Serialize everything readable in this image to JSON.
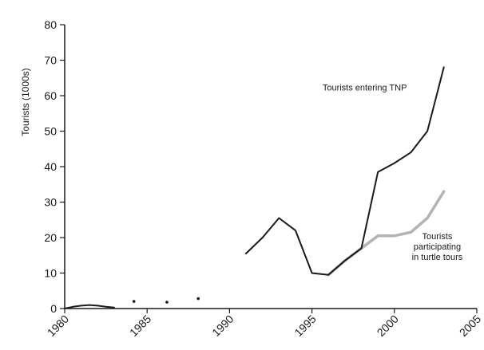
{
  "chart_data": {
    "type": "line",
    "title": "",
    "xlabel": "",
    "ylabel": "Tourists (1000s)",
    "xlim": [
      1980,
      2005
    ],
    "ylim": [
      0,
      80
    ],
    "x_ticks": [
      "1980",
      "1985",
      "1990",
      "1995",
      "2000",
      "2005"
    ],
    "y_ticks": [
      "0",
      "10",
      "20",
      "30",
      "40",
      "50",
      "60",
      "70",
      "80"
    ],
    "grid": false,
    "legend": "none",
    "series": [
      {
        "name": "Tourists entering TNP",
        "color": "#1a1a1a",
        "x": [
          1991,
          1992,
          1993,
          1994,
          1995,
          1996,
          1997,
          1998,
          1999,
          2000,
          2001,
          2002,
          2003
        ],
        "y": [
          15.5,
          20,
          25.5,
          22,
          10,
          9.5,
          13.5,
          17,
          38.5,
          41,
          44,
          50,
          68
        ]
      },
      {
        "name": "Tourists participating in turtle tours",
        "color": "#b3b3b3",
        "x": [
          1996,
          1997,
          1998,
          1999,
          2000,
          2001,
          2002,
          2003
        ],
        "y": [
          9.5,
          13.5,
          17,
          20.5,
          20.5,
          21.5,
          25.5,
          33
        ]
      },
      {
        "name": "",
        "color": "#1a1a1a",
        "x": [
          1980,
          1980.5,
          1981,
          1981.5,
          1982,
          1982.5,
          1983
        ],
        "y": [
          0,
          0.5,
          0.8,
          1,
          0.8,
          0.5,
          0.3
        ]
      }
    ],
    "scatter_points": [
      {
        "x": 1984.2,
        "y": 2
      },
      {
        "x": 1986.2,
        "y": 1.8
      },
      {
        "x": 1988.1,
        "y": 2.8
      }
    ],
    "annotations": [
      {
        "text": "Tourists entering TNP",
        "series": 0
      },
      {
        "lines": [
          "Tourists",
          "participating",
          "in turtle tours"
        ],
        "series": 1
      }
    ]
  }
}
